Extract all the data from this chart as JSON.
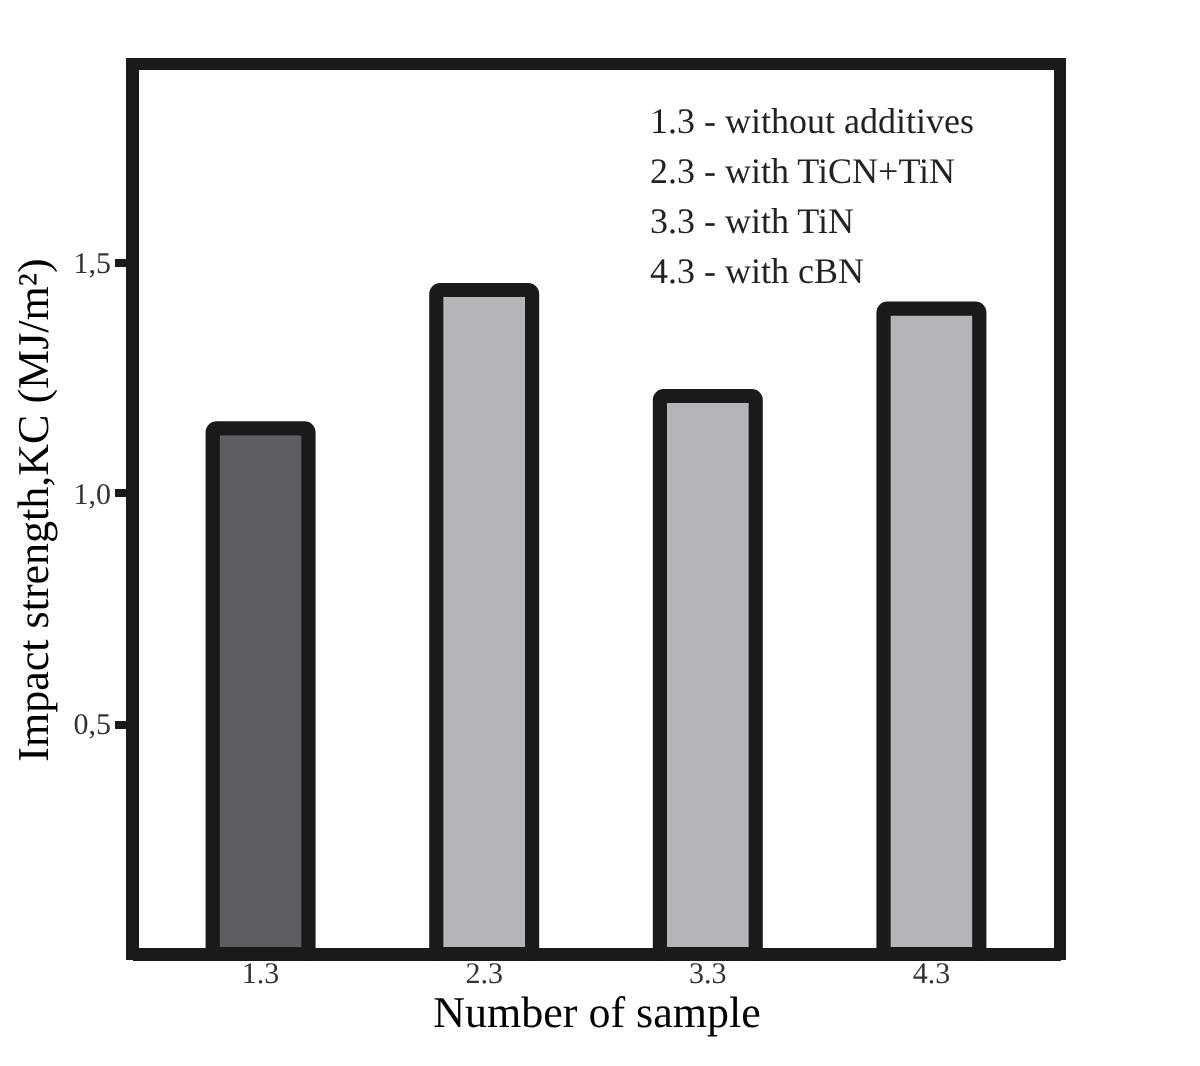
{
  "chart_data": {
    "type": "bar",
    "xlabel": "Number of sample",
    "ylabel": "Impact strength,KC (MJ/m²)",
    "categories": [
      "1.3",
      "2.3",
      "3.3",
      "4.3"
    ],
    "values": [
      1.14,
      1.44,
      1.21,
      1.4
    ],
    "colors": [
      "#5e5e62",
      "#b4b5b9",
      "#b4b5b9",
      "#b4b5b9"
    ],
    "ylim": [
      0,
      1.93
    ],
    "yticks": [
      {
        "value": 0.5,
        "label": "0,5"
      },
      {
        "value": 1.0,
        "label": "1,0"
      },
      {
        "value": 1.5,
        "label": "1,5"
      }
    ],
    "grid": false,
    "annotations": [
      "1.3 - without  additives",
      "2.3 - with  TiCN+TiN",
      "3.3 - with  TiN",
      "4.3 - with  cBN"
    ]
  }
}
